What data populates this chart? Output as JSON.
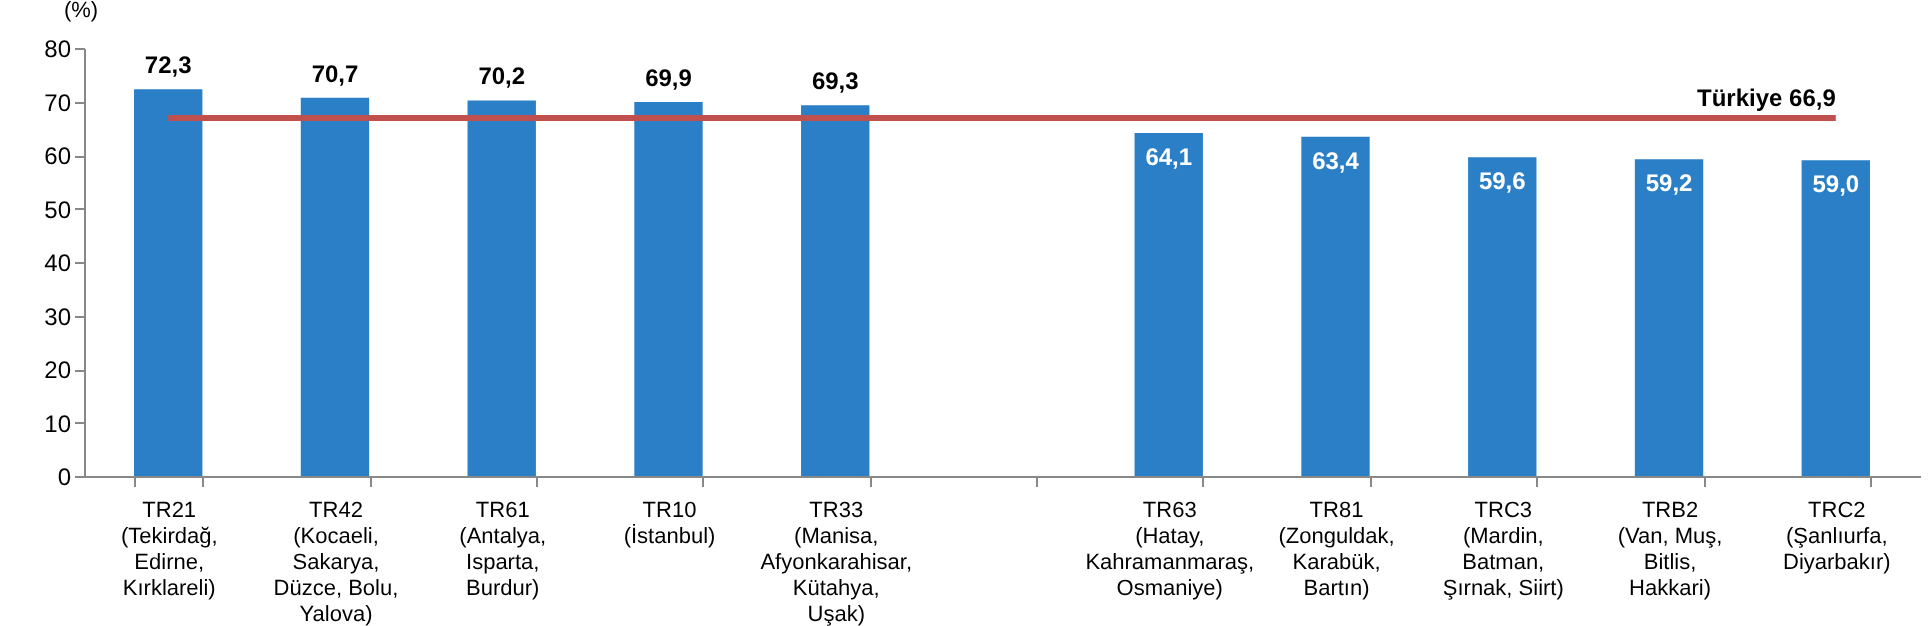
{
  "chart_data": {
    "type": "bar",
    "ylabel": "(%)",
    "categories": [
      "TR21\n(Tekirdağ,\nEdirne,\nKırklareli)",
      "TR42\n(Kocaeli,\nSakarya,\nDüzce, Bolu,\nYalova)",
      "TR61\n(Antalya,\nIsparta,\nBurdur)",
      "TR10\n(İstanbul)",
      "TR33\n(Manisa,\nAfyonkarahisar,\nKütahya,\nUşak)",
      null,
      "TR63\n(Hatay,\nKahramanmaraş,\nOsmaniye)",
      "TR81\n(Zonguldak,\nKarabük,\nBartın)",
      "TRC3\n(Mardin,\nBatman,\nŞırnak, Siirt)",
      "TRB2\n(Van, Muş,\nBitlis,\nHakkari)",
      "TRC2\n(Şanlıurfa,\nDiyarbakır)"
    ],
    "values": [
      72.3,
      70.7,
      70.2,
      69.9,
      69.3,
      null,
      64.1,
      63.4,
      59.6,
      59.2,
      59.0
    ],
    "value_labels": [
      "72,3",
      "70,7",
      "70,2",
      "69,9",
      "69,3",
      null,
      "64,1",
      "63,4",
      "59,6",
      "59,2",
      "59,0"
    ],
    "color": "#2a7fc6",
    "ylim": [
      0,
      80
    ],
    "yticks": [
      0,
      10,
      20,
      30,
      40,
      50,
      60,
      70,
      80
    ],
    "ref_lines": [
      {
        "axis": "y",
        "value": 66.9,
        "label": "Türkiye   66,9",
        "color": "#c0504d"
      }
    ],
    "grid": false
  }
}
